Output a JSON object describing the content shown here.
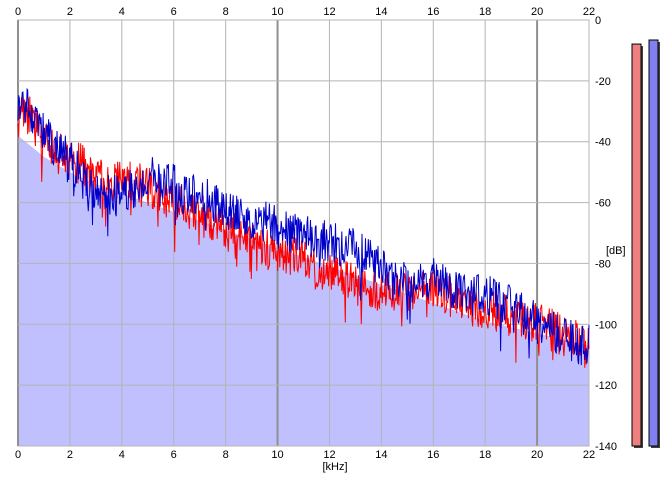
{
  "chart_data": {
    "type": "area",
    "xlabel": "[kHz]",
    "ylabel": "[dB]",
    "xlim": [
      0,
      22
    ],
    "ylim": [
      -140,
      0
    ],
    "x_ticks": [
      "0",
      "2",
      "4",
      "6",
      "8",
      "10",
      "12",
      "14",
      "16",
      "18",
      "20",
      "22"
    ],
    "y_ticks": [
      "0",
      "-20",
      "-40",
      "-60",
      "-80",
      "-100",
      "-120",
      "-140"
    ],
    "grid": true,
    "series": [
      {
        "color": "#ff0000",
        "x": [
          0,
          0.5,
          1,
          1.5,
          2,
          2.5,
          3,
          3.5,
          4,
          4.5,
          5,
          5.5,
          6,
          6.5,
          7,
          7.5,
          8,
          8.5,
          9,
          9.5,
          10,
          10.5,
          11,
          11.5,
          12,
          12.5,
          13,
          13.5,
          14,
          14.5,
          15,
          15.5,
          16,
          16.5,
          17,
          17.5,
          18,
          18.5,
          19,
          19.5,
          20,
          20.5,
          21,
          21.5,
          22
        ],
        "values": [
          -27,
          -32,
          -40,
          -44,
          -45,
          -48,
          -52,
          -54,
          -53,
          -52,
          -55,
          -58,
          -60,
          -62,
          -64,
          -66,
          -70,
          -70,
          -72,
          -74,
          -76,
          -78,
          -79,
          -82,
          -83,
          -84,
          -86,
          -88,
          -89,
          -90,
          -90,
          -89,
          -88,
          -90,
          -92,
          -94,
          -95,
          -96,
          -97,
          -98,
          -100,
          -101,
          -104,
          -105,
          -107
        ]
      },
      {
        "color": "#0000cc",
        "x": [
          0,
          0.5,
          1,
          1.5,
          2,
          2.5,
          3,
          3.5,
          4,
          4.5,
          5,
          5.5,
          6,
          6.5,
          7,
          7.5,
          8,
          8.5,
          9,
          9.5,
          10,
          10.5,
          11,
          11.5,
          12,
          12.5,
          13,
          13.5,
          14,
          14.5,
          15,
          15.5,
          16,
          16.5,
          17,
          17.5,
          18,
          18.5,
          19,
          19.5,
          20,
          20.5,
          21,
          21.5,
          22
        ],
        "values": [
          -26,
          -30,
          -37,
          -42,
          -46,
          -52,
          -56,
          -58,
          -58,
          -55,
          -52,
          -52,
          -54,
          -58,
          -57,
          -60,
          -62,
          -63,
          -65,
          -66,
          -68,
          -70,
          -70,
          -72,
          -73,
          -74,
          -75,
          -78,
          -82,
          -84,
          -86,
          -86,
          -85,
          -87,
          -89,
          -91,
          -90,
          -92,
          -94,
          -97,
          -99,
          -102,
          -104,
          -106,
          -107
        ]
      }
    ],
    "area_fill": {
      "color": "#c0c0ff",
      "x": [
        0,
        1,
        2,
        3,
        4,
        5,
        6,
        7,
        8,
        9,
        10,
        11,
        12,
        13,
        14,
        15,
        16,
        17,
        18,
        19,
        20,
        21,
        22
      ],
      "values": [
        -38,
        -45,
        -50,
        -54,
        -57,
        -60,
        -63,
        -66,
        -69,
        -72,
        -75,
        -78,
        -81,
        -84,
        -87,
        -90,
        -93,
        -96,
        -99,
        -101,
        -103,
        -105,
        -107
      ]
    }
  },
  "level_meters": [
    {
      "color": "#f08080",
      "level": 0.99
    },
    {
      "color": "#8080f0",
      "level": 1.0
    }
  ]
}
